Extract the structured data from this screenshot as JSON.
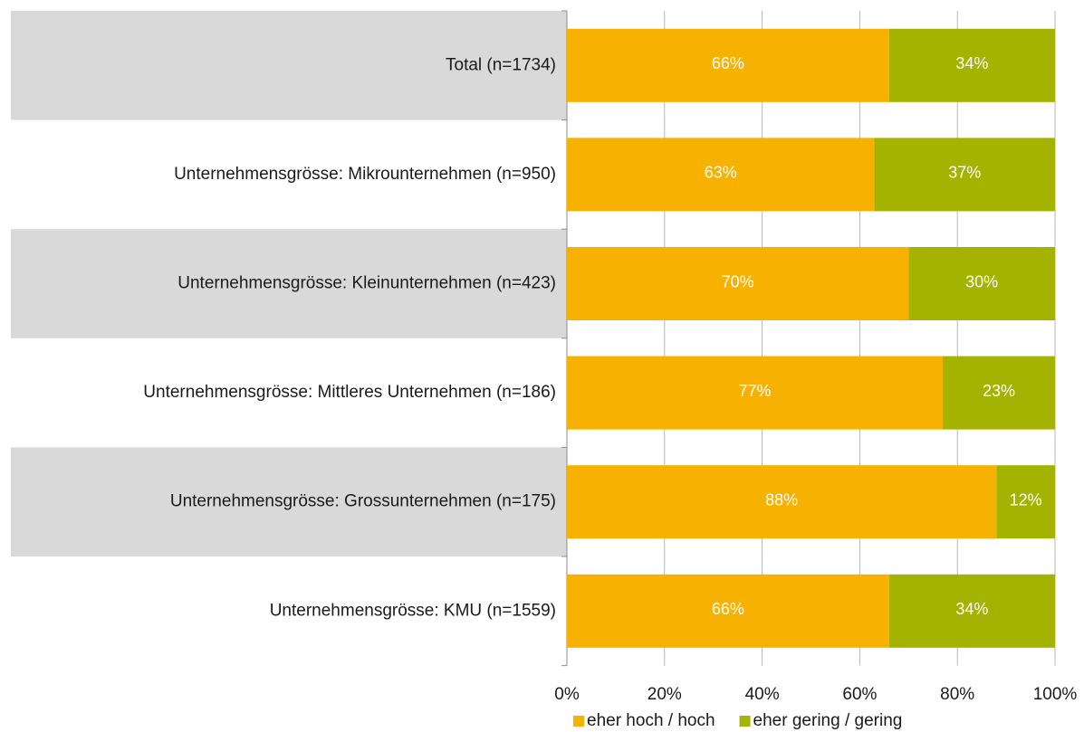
{
  "chart_data": {
    "type": "stacked-bar-horizontal",
    "categories": [
      "Total (n=1734)",
      "Unternehmensgrösse: Mikrounternehmen  (n=950)",
      "Unternehmensgrösse: Kleinunternehmen  (n=423)",
      "Unternehmensgrösse: Mittleres Unternehmen  (n=186)",
      "Unternehmensgrösse: Grossunternehmen  (n=175)",
      "Unternehmensgrösse: KMU (n=1559)"
    ],
    "series": [
      {
        "name": "eher hoch / hoch",
        "color": "#f7b100",
        "values": [
          66,
          63,
          70,
          77,
          88,
          66
        ],
        "value_labels": [
          "66%",
          "63%",
          "70%",
          "77%",
          "88%",
          "66%"
        ]
      },
      {
        "name": "eher gering / gering",
        "color": "#a3b300",
        "values": [
          34,
          37,
          30,
          23,
          12,
          34
        ],
        "value_labels": [
          "34%",
          "37%",
          "30%",
          "23%",
          "12%",
          "34%"
        ]
      }
    ],
    "xlim": [
      0,
      100
    ],
    "xticks": [
      {
        "value": 0,
        "label": "0%"
      },
      {
        "value": 20,
        "label": "20%"
      },
      {
        "value": 40,
        "label": "40%"
      },
      {
        "value": 60,
        "label": "60%"
      },
      {
        "value": 80,
        "label": "80%"
      },
      {
        "value": 100,
        "label": "100%"
      }
    ],
    "grid": true,
    "legend": "bottom"
  }
}
